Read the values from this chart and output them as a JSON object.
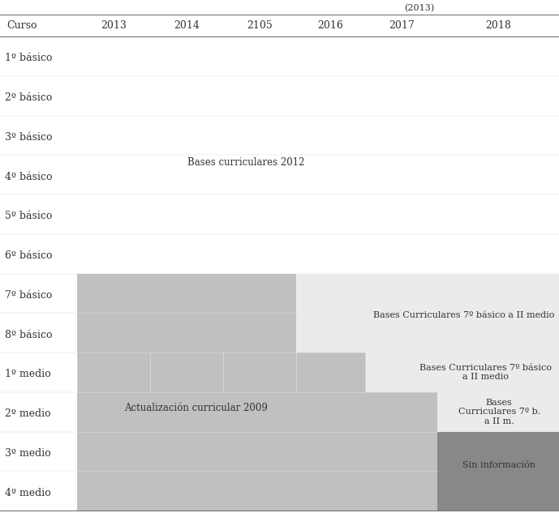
{
  "columns": [
    "Curso",
    "2013",
    "2014",
    "2105",
    "2016",
    "2017",
    "2018"
  ],
  "rows": [
    "1º básico",
    "2º básico",
    "3º básico",
    "4º básico",
    "5º básico",
    "6º básico",
    "7º básico",
    "8º básico",
    "1º medio",
    "2º medio",
    "3º medio",
    "4º medio"
  ],
  "cp": [
    0.0,
    0.138,
    0.268,
    0.399,
    0.53,
    0.653,
    0.783,
    1.0
  ],
  "ac2009_color": "#c0c0c0",
  "bc7_bg_color": "#ebebeb",
  "sin_info_color": "#888888",
  "white": "#ffffff",
  "header_line_color": "#777777",
  "text_color": "#333333",
  "row_label_fontsize": 9,
  "header_fontsize": 9,
  "annotation_fontsize": 8.5,
  "label_bc2012": "Bases curriculares 2012",
  "label_ac2009": "Actualización curricular 2009",
  "label_bc7_top": "Bases Curriculares 7º básico a II medio",
  "label_bc7_mid": "Bases Curriculares 7º básico\na II medio",
  "label_bc7_bot": "Bases\nCurriculares 7º b.\na II m.",
  "label_sin_info": "Sin información",
  "top_label": "(2013)"
}
